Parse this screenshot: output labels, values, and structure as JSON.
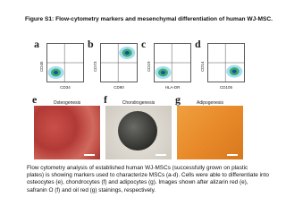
{
  "title": "Figure S1: Flow-cytometry markers and mesenchymal differentiation of human WJ-MSC.",
  "panels": [
    {
      "letter": "a",
      "y_label": "CD45",
      "x_label": "CD34"
    },
    {
      "letter": "b",
      "y_label": "CD73",
      "x_label": "CD90"
    },
    {
      "letter": "c",
      "y_label": "CD19",
      "x_label": "HLA-DR"
    },
    {
      "letter": "d",
      "y_label": "CD14",
      "x_label": "CD105"
    }
  ],
  "images": [
    {
      "letter": "e",
      "label": "Osteogenesis"
    },
    {
      "letter": "f",
      "label": "Chondrogenesis"
    },
    {
      "letter": "g",
      "label": "Adipogenesis"
    }
  ],
  "caption": [
    "Flow cytometry analysis of established human WJ-MSCs (successfully grown on plastic",
    "plates) is showing markers used to characterize MSCs (a-d). Cells were able to differentiate into",
    "osteocytes (e), chondrocytes (f) and adipocytes (g). Images shown after alizarin red (e),",
    "safranin O (f) and oil red (g) stainings, respectively."
  ]
}
